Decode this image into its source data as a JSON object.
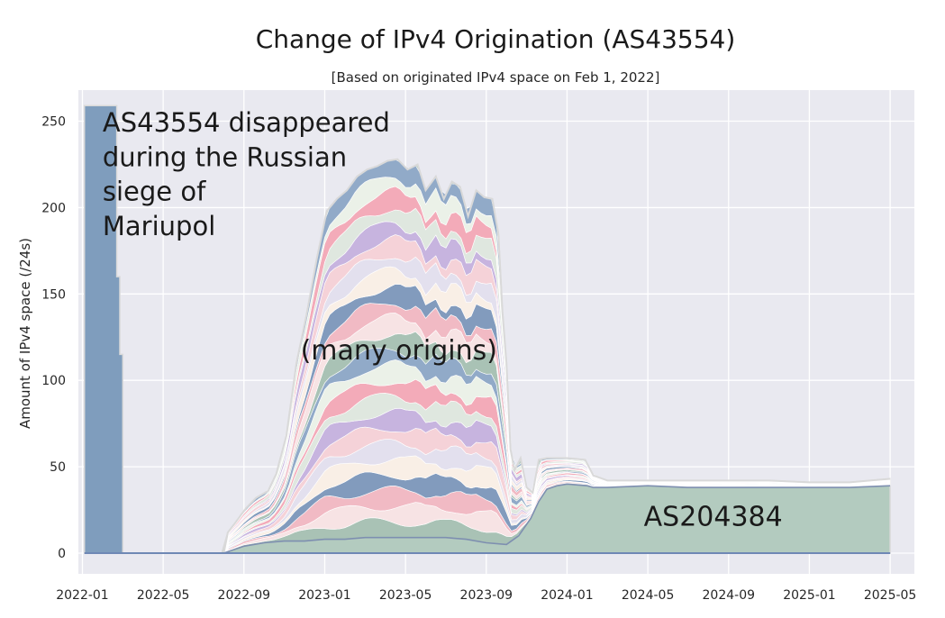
{
  "chart_data": {
    "type": "area",
    "title": "Change of IPv4 Origination (AS43554)",
    "subtitle": "[Based on originated IPv4 space on Feb 1, 2022]",
    "xlabel": "",
    "ylabel": "Amount of IPv4 space (/24s)",
    "ylim": [
      -12,
      268
    ],
    "yticks": [
      0,
      50,
      100,
      150,
      200,
      250
    ],
    "xlim": [
      -0.2,
      41.2
    ],
    "xticks": [
      {
        "label": "2022-01",
        "x": 0
      },
      {
        "label": "2022-05",
        "x": 4
      },
      {
        "label": "2022-09",
        "x": 8
      },
      {
        "label": "2023-01",
        "x": 12
      },
      {
        "label": "2023-05",
        "x": 16
      },
      {
        "label": "2023-09",
        "x": 20
      },
      {
        "label": "2024-01",
        "x": 24
      },
      {
        "label": "2024-05",
        "x": 28
      },
      {
        "label": "2024-09",
        "x": 32
      },
      {
        "label": "2025-01",
        "x": 36
      },
      {
        "label": "2025-05",
        "x": 40
      }
    ],
    "x_unit": "months since 2022-01",
    "grid": true,
    "series": [
      {
        "name": "AS43554",
        "color": "#7f9dbd",
        "points": [
          [
            0.1,
            0
          ],
          [
            0.1,
            259
          ],
          [
            1.7,
            259
          ],
          [
            1.7,
            160
          ],
          [
            1.85,
            160
          ],
          [
            1.85,
            115
          ],
          [
            2.0,
            115
          ],
          [
            2.0,
            0
          ],
          [
            40,
            0
          ]
        ]
      },
      {
        "name": "AS204384",
        "color": "#b3cbbf",
        "points": [
          [
            0.1,
            0
          ],
          [
            6.9,
            0
          ],
          [
            7.2,
            12
          ],
          [
            7.6,
            18
          ],
          [
            8.1,
            26
          ],
          [
            8.6,
            32
          ],
          [
            9.2,
            36
          ],
          [
            9.6,
            46
          ],
          [
            10.1,
            68
          ],
          [
            10.6,
            110
          ],
          [
            11.1,
            138
          ],
          [
            11.6,
            170
          ],
          [
            12.1,
            198
          ],
          [
            12.6,
            205
          ],
          [
            13.1,
            210
          ],
          [
            13.6,
            218
          ],
          [
            14.1,
            222
          ],
          [
            14.6,
            224
          ],
          [
            15.1,
            227
          ],
          [
            15.6,
            228
          ],
          [
            16.1,
            222
          ],
          [
            16.6,
            225
          ],
          [
            17.0,
            210
          ],
          [
            17.5,
            218
          ],
          [
            17.9,
            205
          ],
          [
            18.3,
            215
          ],
          [
            18.7,
            212
          ],
          [
            19.1,
            195
          ],
          [
            19.5,
            210
          ],
          [
            19.9,
            206
          ],
          [
            20.3,
            205
          ],
          [
            20.6,
            185
          ],
          [
            20.8,
            140
          ],
          [
            21.0,
            110
          ],
          [
            21.2,
            60
          ],
          [
            21.4,
            48
          ],
          [
            21.7,
            55
          ],
          [
            22.0,
            38
          ],
          [
            22.3,
            35
          ],
          [
            22.6,
            54
          ],
          [
            23.0,
            55
          ],
          [
            24.0,
            55
          ],
          [
            24.9,
            54
          ],
          [
            25.3,
            45
          ],
          [
            26.0,
            42
          ],
          [
            28,
            42
          ],
          [
            30,
            42
          ],
          [
            32,
            42
          ],
          [
            34,
            42
          ],
          [
            36,
            41
          ],
          [
            38,
            41
          ],
          [
            39,
            42
          ],
          [
            40,
            43
          ],
          [
            40,
            0
          ]
        ]
      },
      {
        "name": "many origins (stacked)",
        "stroke": "#7e8fb0",
        "palette": [
          "#a9c1b4",
          "#fbe4e6",
          "#f4b8c4",
          "#7f98bd",
          "#fdf0e8",
          "#e6e0f0",
          "#f9d2d9",
          "#c8b2e0",
          "#e2e8e0",
          "#f7a9b8",
          "#eef2ea",
          "#8fa8c8"
        ],
        "base_outline": [
          [
            7.0,
            0
          ],
          [
            8,
            4
          ],
          [
            9,
            6
          ],
          [
            10,
            7
          ],
          [
            11,
            7
          ],
          [
            12,
            8
          ],
          [
            13,
            8
          ],
          [
            14,
            9
          ],
          [
            15,
            9
          ],
          [
            16,
            9
          ],
          [
            17,
            9
          ],
          [
            18,
            9
          ],
          [
            19,
            8
          ],
          [
            20,
            6
          ],
          [
            21,
            5
          ],
          [
            21.6,
            10
          ],
          [
            22.2,
            20
          ],
          [
            22.6,
            30
          ],
          [
            23.0,
            37
          ],
          [
            23.5,
            39
          ],
          [
            24,
            40
          ],
          [
            25.0,
            39
          ],
          [
            25.3,
            38
          ],
          [
            26,
            38
          ],
          [
            28,
            39
          ],
          [
            30,
            38
          ],
          [
            32,
            38
          ],
          [
            34,
            38
          ],
          [
            36,
            38
          ],
          [
            38,
            38
          ],
          [
            40,
            39
          ]
        ],
        "top_outline": [
          [
            7.0,
            0
          ],
          [
            7.2,
            12
          ],
          [
            7.6,
            18
          ],
          [
            8.1,
            26
          ],
          [
            8.6,
            32
          ],
          [
            9.2,
            36
          ],
          [
            9.6,
            46
          ],
          [
            10.1,
            68
          ],
          [
            10.6,
            110
          ],
          [
            11.1,
            138
          ],
          [
            11.6,
            170
          ],
          [
            12.1,
            198
          ],
          [
            12.6,
            205
          ],
          [
            13.1,
            210
          ],
          [
            13.6,
            218
          ],
          [
            14.1,
            222
          ],
          [
            14.6,
            224
          ],
          [
            15.1,
            227
          ],
          [
            15.6,
            228
          ],
          [
            16.1,
            222
          ],
          [
            16.6,
            225
          ],
          [
            17.0,
            210
          ],
          [
            17.5,
            218
          ],
          [
            17.9,
            205
          ],
          [
            18.3,
            215
          ],
          [
            18.7,
            212
          ],
          [
            19.1,
            195
          ],
          [
            19.5,
            210
          ],
          [
            19.9,
            206
          ],
          [
            20.3,
            205
          ],
          [
            20.6,
            185
          ],
          [
            20.8,
            140
          ],
          [
            21.0,
            110
          ],
          [
            21.2,
            60
          ],
          [
            21.4,
            48
          ],
          [
            21.7,
            55
          ],
          [
            22.0,
            38
          ],
          [
            22.3,
            35
          ],
          [
            22.6,
            54
          ],
          [
            23.0,
            55
          ],
          [
            24.0,
            55
          ],
          [
            24.9,
            54
          ],
          [
            25.3,
            45
          ],
          [
            26,
            42
          ],
          [
            28,
            42
          ],
          [
            30,
            42
          ],
          [
            32,
            42
          ],
          [
            34,
            42
          ],
          [
            36,
            41
          ],
          [
            38,
            41
          ],
          [
            39,
            42
          ],
          [
            40,
            43
          ]
        ]
      }
    ],
    "annotations": [
      {
        "text": "AS43554 disappeared",
        "x": 1.0,
        "y": 244
      },
      {
        "text": "during the Russian",
        "x": 1.0,
        "y": 224
      },
      {
        "text": "siege of",
        "x": 1.0,
        "y": 204
      },
      {
        "text": "Mariupol",
        "x": 1.0,
        "y": 184
      },
      {
        "text": "(many origins)",
        "x": 10.8,
        "y": 112
      },
      {
        "text": "AS204384",
        "x": 27.8,
        "y": 16
      }
    ]
  },
  "colors": {
    "plot_bg": "#e9e9f0",
    "grid": "#ffffff",
    "outline": "#d9d9d9"
  }
}
